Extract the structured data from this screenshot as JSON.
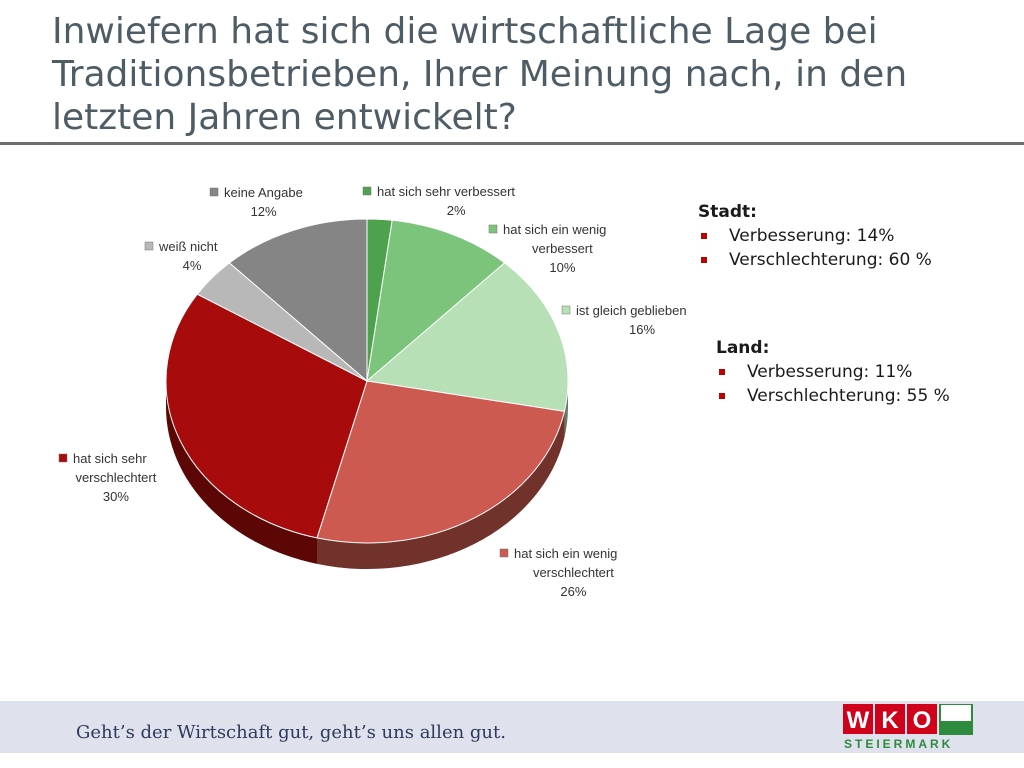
{
  "title": "Inwiefern hat sich die wirtschaftliche Lage bei Traditionsbetrieben, Ihrer Meinung nach, in den letzten Jahren entwickelt?",
  "chart_data": {
    "type": "pie",
    "start_category": "hat sich sehr verbessert",
    "slices": [
      {
        "label_lines": [
          "hat sich sehr verbessert"
        ],
        "value": 2,
        "value_label": "2%",
        "color": "#4ea24e"
      },
      {
        "label_lines": [
          "hat sich ein wenig",
          "verbessert"
        ],
        "value": 10,
        "value_label": "10%",
        "color": "#7cc47c"
      },
      {
        "label_lines": [
          "ist gleich geblieben"
        ],
        "value": 16,
        "value_label": "16%",
        "color": "#b7e0b7"
      },
      {
        "label_lines": [
          "hat sich ein wenig",
          "verschlechtert"
        ],
        "value": 26,
        "value_label": "26%",
        "color": "#cd5a50"
      },
      {
        "label_lines": [
          "hat sich sehr",
          "verschlechtert"
        ],
        "value": 30,
        "value_label": "30%",
        "color": "#a80b0b"
      },
      {
        "label_lines": [
          "weiß nicht"
        ],
        "value": 4,
        "value_label": "4%",
        "color": "#b8b8b8"
      },
      {
        "label_lines": [
          "keine Angabe"
        ],
        "value": 12,
        "value_label": "12%",
        "color": "#858585"
      }
    ],
    "legend": "labels-around-pie"
  },
  "stadt": {
    "heading": "Stadt:",
    "items": [
      "Verbesserung: 14%",
      "Verschlechterung: 60 %"
    ]
  },
  "land": {
    "heading": "Land:",
    "items": [
      "Verbesserung: 11%",
      "Verschlechterung: 55 %"
    ]
  },
  "footer": {
    "slogan": "Geht’s der Wirtschaft gut, geht’s uns allen gut.",
    "logo_letters": [
      "W",
      "K",
      "O"
    ],
    "logo_sub": "STEIERMARK"
  },
  "colors": {
    "title": "#4e5c66",
    "bullet": "#c00000",
    "logo_red": "#d0021b",
    "logo_green": "#2e8b3d",
    "footer_band": "#dfe1ec"
  }
}
